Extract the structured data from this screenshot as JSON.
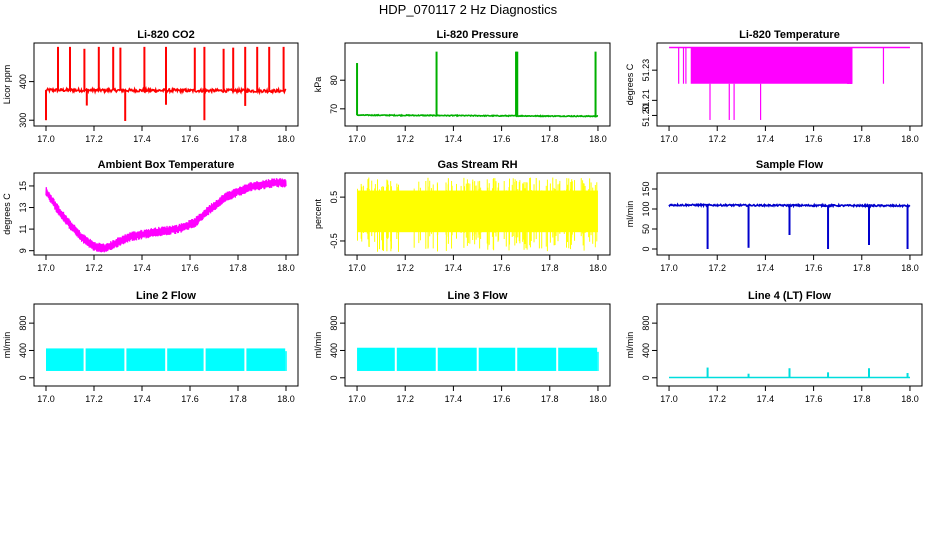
{
  "title": "HDP_070117  2 Hz Diagnostics",
  "chart_data": [
    {
      "type": "line",
      "title": "Li-820 CO2",
      "ylabel": "Licor ppm",
      "color": "#ff0000",
      "xlim": [
        16.95,
        18.05
      ],
      "ylim": [
        285,
        500
      ],
      "xticks": [
        "17.0",
        "17.2",
        "17.4",
        "17.6",
        "17.8",
        "18.0"
      ],
      "yticks": [
        "300",
        "400"
      ],
      "ytick_values": [
        300,
        400
      ],
      "series": [
        {
          "name": "CO2",
          "pattern": "band_spikes",
          "base": [
            378,
            376
          ],
          "noise": 4,
          "spikes_up": [
            [
              17.05,
              490
            ],
            [
              17.1,
              490
            ],
            [
              17.16,
              485
            ],
            [
              17.22,
              490
            ],
            [
              17.28,
              490
            ],
            [
              17.31,
              488
            ],
            [
              17.41,
              490
            ],
            [
              17.5,
              490
            ],
            [
              17.62,
              488
            ],
            [
              17.66,
              490
            ],
            [
              17.74,
              485
            ],
            [
              17.78,
              488
            ],
            [
              17.83,
              490
            ],
            [
              17.88,
              490
            ],
            [
              17.93,
              490
            ],
            [
              17.99,
              490
            ]
          ],
          "spikes_down": [
            [
              17.0,
              300
            ],
            [
              17.17,
              338
            ],
            [
              17.33,
              298
            ],
            [
              17.5,
              340
            ],
            [
              17.66,
              300
            ],
            [
              17.83,
              337
            ]
          ]
        }
      ]
    },
    {
      "type": "line",
      "title": "Li-820 Pressure",
      "ylabel": "kPa",
      "color": "#00b000",
      "xlim": [
        16.95,
        18.05
      ],
      "ylim": [
        64,
        93
      ],
      "xticks": [
        "17.0",
        "17.2",
        "17.4",
        "17.6",
        "17.8",
        "18.0"
      ],
      "yticks": [
        "70",
        "80"
      ],
      "ytick_values": [
        70,
        80
      ],
      "series": [
        {
          "name": "Pressure",
          "pattern": "band_spikes",
          "base": [
            67.8,
            67.4
          ],
          "noise": 0.15,
          "spikes_up": [
            [
              17.0,
              86
            ],
            [
              17.33,
              90
            ],
            [
              17.66,
              90
            ],
            [
              17.665,
              90
            ],
            [
              17.99,
              90
            ]
          ],
          "spikes_down": []
        }
      ]
    },
    {
      "type": "line",
      "title": "Li-820 Temperature",
      "ylabel": "degrees C",
      "color": "#ff00ff",
      "xlim": [
        16.95,
        18.05
      ],
      "ylim": [
        51.193,
        51.248
      ],
      "xticks": [
        "17.0",
        "17.2",
        "17.4",
        "17.6",
        "17.8",
        "18.0"
      ],
      "yticks": [
        "51.20",
        "51.21",
        "51.23"
      ],
      "ytick_values": [
        51.2,
        51.21,
        51.23
      ],
      "series": [
        {
          "name": "Temperature",
          "pattern": "binary",
          "base": [
            51.245,
            51.245
          ],
          "low": 51.221,
          "dense_range": [
            17.09,
            17.74
          ],
          "sparse_lines": [
            17.04,
            17.06,
            17.07,
            17.89
          ],
          "spikes_down": [
            [
              17.17,
              51.197
            ],
            [
              17.25,
              51.197
            ],
            [
              17.27,
              51.197
            ],
            [
              17.38,
              51.197
            ]
          ]
        }
      ]
    },
    {
      "type": "line",
      "title": "Ambient Box Temperature",
      "ylabel": "degrees C",
      "color": "#ff00ff",
      "xlim": [
        16.95,
        18.05
      ],
      "ylim": [
        8.6,
        16.2
      ],
      "xticks": [
        "17.0",
        "17.2",
        "17.4",
        "17.6",
        "17.8",
        "18.0"
      ],
      "yticks": [
        "9",
        "11",
        "13",
        "15"
      ],
      "ytick_values": [
        9,
        11,
        13,
        15
      ],
      "series": [
        {
          "name": "Ambient",
          "pattern": "curve",
          "noise": 0.45,
          "curve": [
            [
              17.0,
              14.5
            ],
            [
              17.05,
              12.8
            ],
            [
              17.1,
              11.4
            ],
            [
              17.15,
              10.2
            ],
            [
              17.2,
              9.4
            ],
            [
              17.25,
              9.2
            ],
            [
              17.3,
              9.8
            ],
            [
              17.35,
              10.3
            ],
            [
              17.45,
              10.7
            ],
            [
              17.55,
              11.0
            ],
            [
              17.62,
              11.6
            ],
            [
              17.68,
              12.8
            ],
            [
              17.75,
              14.0
            ],
            [
              17.85,
              14.9
            ],
            [
              17.95,
              15.3
            ],
            [
              18.0,
              15.3
            ]
          ]
        }
      ]
    },
    {
      "type": "line",
      "title": "Gas Stream RH",
      "ylabel": "percent",
      "color": "#ffff00",
      "xlim": [
        16.95,
        18.05
      ],
      "ylim": [
        -0.82,
        1.05
      ],
      "xticks": [
        "17.0",
        "17.2",
        "17.4",
        "17.6",
        "17.8",
        "18.0"
      ],
      "yticks": [
        "-0.5",
        "0.5"
      ],
      "ytick_values": [
        -0.5,
        0.5
      ],
      "series": [
        {
          "name": "RH",
          "pattern": "noise_band",
          "base": [
            0.15,
            0.15
          ],
          "band": [
            -0.3,
            0.65
          ],
          "extreme": [
            -0.75,
            0.95
          ]
        }
      ]
    },
    {
      "type": "line",
      "title": "Sample Flow",
      "ylabel": "ml/min",
      "color": "#0000cc",
      "xlim": [
        16.95,
        18.05
      ],
      "ylim": [
        -15,
        190
      ],
      "xticks": [
        "17.0",
        "17.2",
        "17.4",
        "17.6",
        "17.8",
        "18.0"
      ],
      "yticks": [
        "0",
        "50",
        "100",
        "150"
      ],
      "ytick_values": [
        0,
        50,
        100,
        150
      ],
      "series": [
        {
          "name": "Sample",
          "pattern": "band_spikes",
          "base": [
            110,
            108
          ],
          "noise": 2,
          "spikes_up": [],
          "spikes_down": [
            [
              17.16,
              0
            ],
            [
              17.33,
              3
            ],
            [
              17.5,
              35
            ],
            [
              17.66,
              0
            ],
            [
              17.83,
              10
            ],
            [
              17.99,
              0
            ]
          ]
        }
      ]
    },
    {
      "type": "line",
      "title": "Line 2 Flow",
      "ylabel": "ml/min",
      "color": "#00ffff",
      "xlim": [
        16.95,
        18.05
      ],
      "ylim": [
        -120,
        1080
      ],
      "xticks": [
        "17.0",
        "17.2",
        "17.4",
        "17.6",
        "17.8",
        "18.0"
      ],
      "yticks": [
        "0",
        "400",
        "800"
      ],
      "ytick_values": [
        0,
        400,
        800
      ],
      "series": [
        {
          "name": "Line2",
          "pattern": "blocks",
          "low": 100,
          "high": 430,
          "gaps": [
            17.16,
            17.33,
            17.5,
            17.66,
            17.83
          ],
          "extra": [
            [
              18.0,
              390
            ]
          ]
        }
      ]
    },
    {
      "type": "line",
      "title": "Line 3 Flow",
      "ylabel": "ml/min",
      "color": "#00ffff",
      "xlim": [
        16.95,
        18.05
      ],
      "ylim": [
        -120,
        1080
      ],
      "xticks": [
        "17.0",
        "17.2",
        "17.4",
        "17.6",
        "17.8",
        "18.0"
      ],
      "yticks": [
        "0",
        "400",
        "800"
      ],
      "ytick_values": [
        0,
        400,
        800
      ],
      "series": [
        {
          "name": "Line3",
          "pattern": "blocks",
          "low": 100,
          "high": 440,
          "gaps": [
            17.16,
            17.33,
            17.5,
            17.66,
            17.83
          ],
          "extra": [
            [
              18.0,
              380
            ]
          ]
        }
      ]
    },
    {
      "type": "line",
      "title": "Line 4 (LT) Flow",
      "ylabel": "ml/min",
      "color": "#00dddd",
      "xlim": [
        16.95,
        18.05
      ],
      "ylim": [
        -120,
        1080
      ],
      "xticks": [
        "17.0",
        "17.2",
        "17.4",
        "17.6",
        "17.8",
        "18.0"
      ],
      "yticks": [
        "0",
        "400",
        "800"
      ],
      "ytick_values": [
        0,
        400,
        800
      ],
      "series": [
        {
          "name": "Line4",
          "pattern": "band_spikes",
          "base": [
            5,
            5
          ],
          "noise": 0,
          "spikes_up": [
            [
              17.16,
              150
            ],
            [
              17.33,
              60
            ],
            [
              17.5,
              140
            ],
            [
              17.66,
              80
            ],
            [
              17.83,
              140
            ],
            [
              17.99,
              70
            ]
          ],
          "spikes_down": []
        }
      ]
    }
  ]
}
